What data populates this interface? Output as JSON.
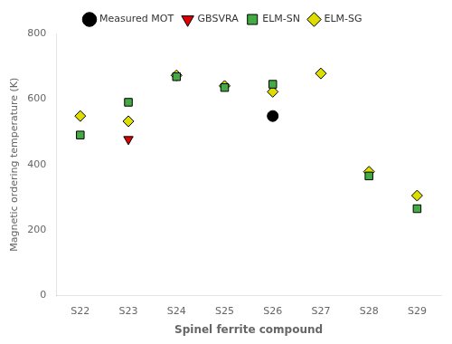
{
  "chart_data": {
    "type": "scatter",
    "xlabel": "Spinel ferrite compound",
    "ylabel": "Magnetic ordering temperature (K)",
    "categories": [
      "S22",
      "S23",
      "S24",
      "S25",
      "S26",
      "S27",
      "S28",
      "S29"
    ],
    "series": [
      {
        "name": "Measured MOT",
        "color": "#000000",
        "marker": "circle",
        "values": [
          null,
          null,
          null,
          null,
          548,
          null,
          null,
          null
        ]
      },
      {
        "name": "GBSVRA",
        "color": "#dd0000",
        "marker": "triangle_down",
        "values": [
          null,
          477,
          null,
          null,
          548,
          null,
          null,
          null
        ]
      },
      {
        "name": "ELM-SN",
        "color": "#44aa44",
        "marker": "square",
        "values": [
          490,
          590,
          668,
          635,
          645,
          null,
          365,
          265
        ]
      },
      {
        "name": "ELM-SG",
        "color": "#dddd00",
        "marker": "diamond",
        "values": [
          548,
          532,
          672,
          640,
          622,
          678,
          378,
          305
        ]
      }
    ],
    "ylim": [
      0,
      800
    ],
    "yticks": [
      0,
      200,
      400,
      600,
      800
    ],
    "grid": false,
    "legend": "top"
  }
}
